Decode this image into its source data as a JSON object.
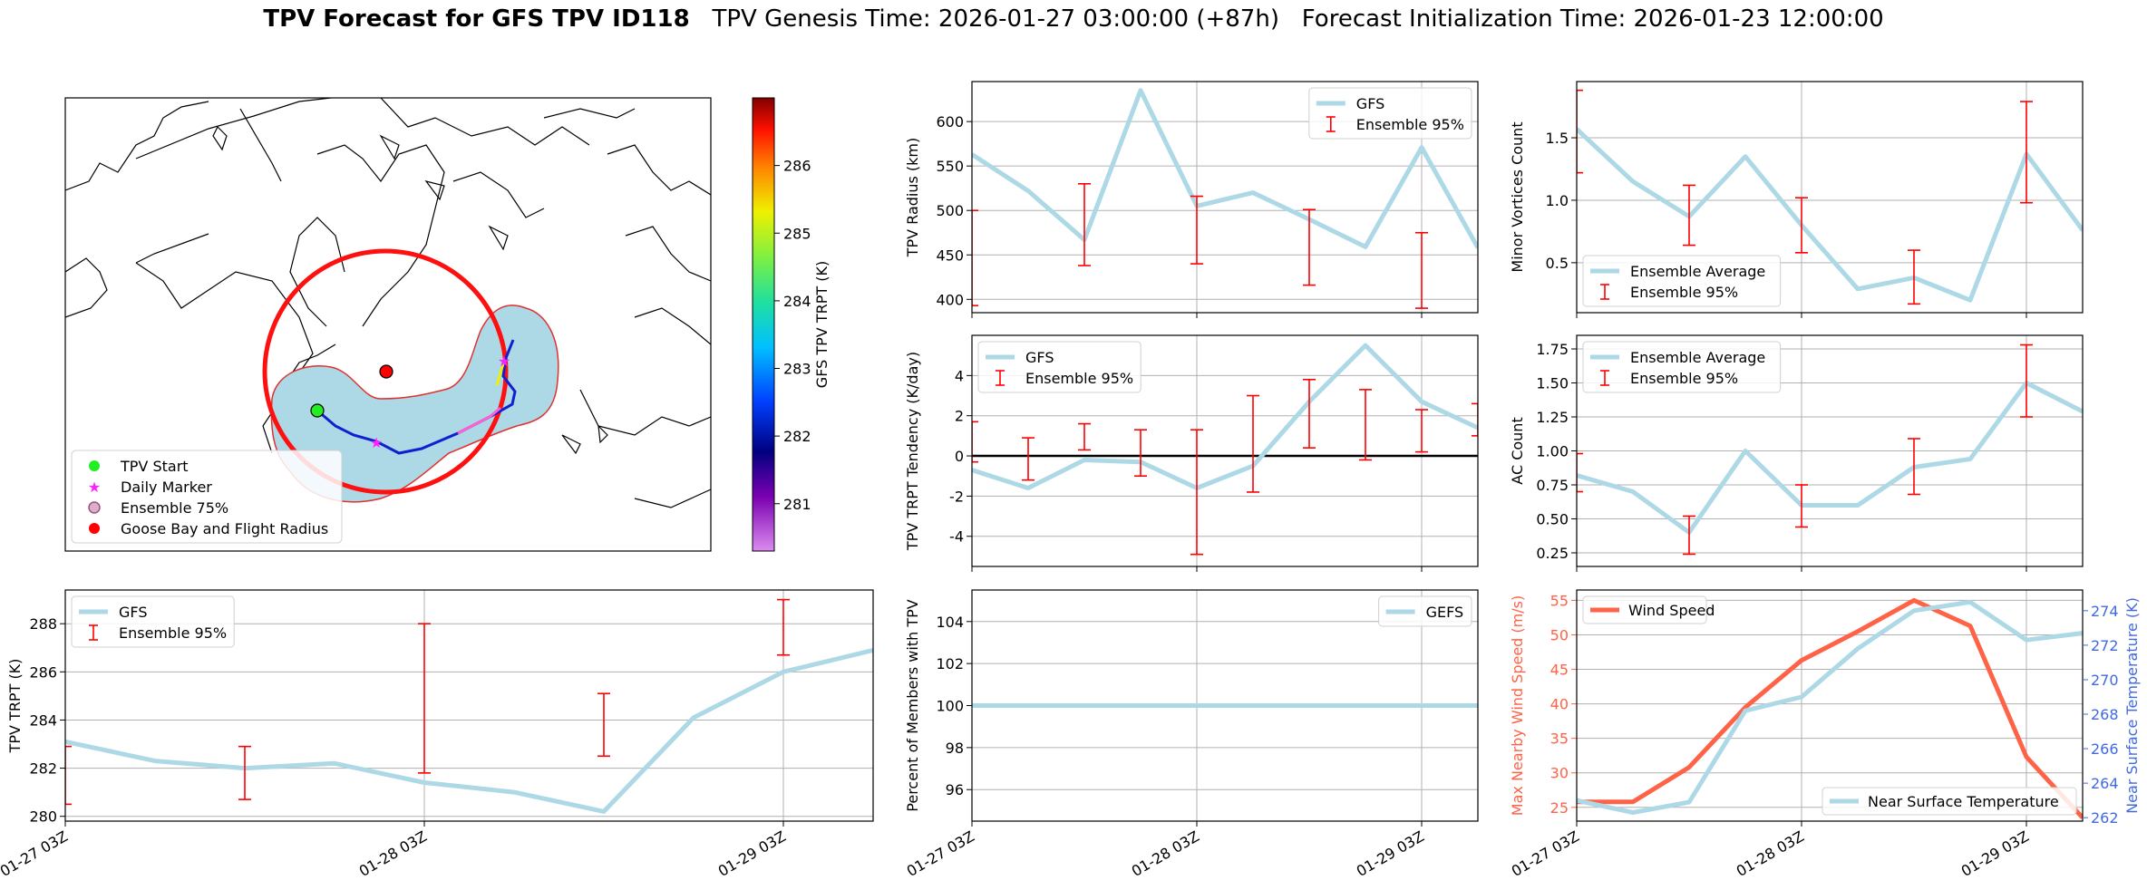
{
  "figure": {
    "title_bold": "TPV Forecast for GFS TPV ID118",
    "title_genesis": "TPV Genesis Time: 2026-01-27 03:00:00 (+87h)",
    "title_init": "Forecast Initialization Time: 2026-01-23 12:00:00"
  },
  "colors": {
    "gfs_line": "#add8e6",
    "ensemble_bar": "#ff0000",
    "wind_line": "#ff6347",
    "temp_axis": "#4169e1",
    "grid": "#b0b0b0",
    "map_fill": "#add8e6",
    "flight_radius": "#ff0000"
  },
  "map": {
    "legend": [
      "TPV Start",
      "Daily Marker",
      "Ensemble 75%",
      "Goose Bay and Flight Radius"
    ],
    "colorbar": {
      "label": "GFS TPV TRPT (K)",
      "ticks": [
        281,
        282,
        283,
        284,
        285,
        286
      ],
      "range": [
        280.3,
        287.0
      ]
    }
  },
  "chart_data": [
    {
      "id": "trpt",
      "type": "line",
      "ylabel": "TPV TRPT (K)",
      "x_ticks": [
        "01-27 03Z",
        "01-28 03Z",
        "01-29 03Z"
      ],
      "ylim": [
        279.8,
        289.4
      ],
      "yticks": [
        280,
        282,
        284,
        286,
        288
      ],
      "series": [
        {
          "name": "GFS",
          "x": [
            0,
            6,
            12,
            18,
            24,
            30,
            36,
            42,
            48,
            54
          ],
          "values": [
            283.1,
            282.3,
            282.0,
            282.2,
            281.4,
            281.0,
            280.2,
            284.1,
            286.0,
            286.9
          ]
        }
      ],
      "errorbars": {
        "name": "Ensemble 95%",
        "x": [
          0,
          12,
          24,
          36,
          48
        ],
        "low": [
          280.5,
          280.7,
          281.8,
          282.5,
          286.7
        ],
        "high": [
          282.9,
          282.9,
          288.0,
          285.1,
          289.0
        ]
      },
      "legend": [
        "GFS",
        "Ensemble 95%"
      ]
    },
    {
      "id": "radius",
      "type": "line",
      "ylabel": "TPV Radius (km)",
      "ylim": [
        385,
        645
      ],
      "yticks": [
        400,
        450,
        500,
        550,
        600
      ],
      "series": [
        {
          "name": "GFS",
          "x": [
            0,
            6,
            12,
            18,
            24,
            30,
            36,
            42,
            48,
            54
          ],
          "values": [
            563,
            522,
            467,
            635,
            505,
            520,
            490,
            459,
            571,
            458
          ]
        }
      ],
      "errorbars": {
        "name": "Ensemble 95%",
        "x": [
          0,
          12,
          24,
          36,
          48
        ],
        "low": [
          393,
          438,
          440,
          416,
          390
        ],
        "high": [
          500,
          530,
          516,
          501,
          475
        ]
      },
      "legend": [
        "GFS",
        "Ensemble 95%"
      ]
    },
    {
      "id": "minor",
      "type": "line",
      "ylabel": "Minor Vortices Count",
      "ylim": [
        0.1,
        1.95
      ],
      "yticks": [
        0.5,
        1.0,
        1.5
      ],
      "series": [
        {
          "name": "Ensemble Average",
          "x": [
            0,
            6,
            12,
            18,
            24,
            30,
            36,
            42,
            48,
            54
          ],
          "values": [
            1.57,
            1.15,
            0.87,
            1.35,
            0.8,
            0.29,
            0.38,
            0.2,
            1.37,
            0.76
          ]
        }
      ],
      "errorbars": {
        "name": "Ensemble 95%",
        "x": [
          0,
          12,
          24,
          36,
          48
        ],
        "low": [
          1.22,
          0.64,
          0.58,
          0.17,
          0.98
        ],
        "high": [
          1.88,
          1.12,
          1.02,
          0.6,
          1.79
        ]
      },
      "legend": [
        "Ensemble Average",
        "Ensemble 95%"
      ]
    },
    {
      "id": "tendency",
      "type": "line",
      "ylabel": "TPV TRPT Tendency (K/day)",
      "ylim": [
        -5.5,
        6.0
      ],
      "yticks": [
        -4,
        -2,
        0,
        2,
        4
      ],
      "zero_line": true,
      "series": [
        {
          "name": "GFS",
          "x": [
            0,
            6,
            12,
            18,
            24,
            30,
            36,
            42,
            48,
            54
          ],
          "values": [
            -0.7,
            -1.6,
            -0.2,
            -0.3,
            -1.6,
            -0.5,
            2.7,
            5.5,
            2.7,
            1.4
          ]
        }
      ],
      "errorbars": {
        "name": "Ensemble 95%",
        "x": [
          0,
          6,
          12,
          18,
          24,
          30,
          36,
          42,
          48,
          54
        ],
        "low": [
          -0.3,
          -1.2,
          0.3,
          -1.0,
          -4.9,
          -1.8,
          0.4,
          -0.2,
          0.2,
          1.0
        ],
        "high": [
          1.7,
          0.9,
          1.6,
          1.3,
          1.3,
          3.0,
          3.8,
          3.3,
          2.3,
          2.6
        ]
      },
      "legend": [
        "GFS",
        "Ensemble 95%"
      ]
    },
    {
      "id": "ac",
      "type": "line",
      "ylabel": "AC Count",
      "ylim": [
        0.15,
        1.85
      ],
      "yticks": [
        0.25,
        0.5,
        0.75,
        1.0,
        1.25,
        1.5,
        1.75
      ],
      "series": [
        {
          "name": "Ensemble Average",
          "x": [
            0,
            6,
            12,
            18,
            24,
            30,
            36,
            42,
            48,
            54
          ],
          "values": [
            0.82,
            0.7,
            0.4,
            1.0,
            0.6,
            0.6,
            0.88,
            0.94,
            1.5,
            1.29
          ]
        }
      ],
      "errorbars": {
        "name": "Ensemble 95%",
        "x": [
          0,
          12,
          24,
          36,
          48
        ],
        "low": [
          0.7,
          0.24,
          0.44,
          0.68,
          1.25
        ],
        "high": [
          0.98,
          0.52,
          0.75,
          1.09,
          1.78
        ]
      },
      "legend": [
        "Ensemble Average",
        "Ensemble 95%"
      ]
    },
    {
      "id": "members",
      "type": "line",
      "ylabel": "Percent of Members with TPV",
      "x_ticks": [
        "01-27 03Z",
        "01-28 03Z",
        "01-29 03Z"
      ],
      "ylim": [
        94.5,
        105.5
      ],
      "yticks": [
        96,
        98,
        100,
        102,
        104
      ],
      "series": [
        {
          "name": "GEFS",
          "x": [
            0,
            54
          ],
          "values": [
            100,
            100
          ]
        }
      ],
      "legend": [
        "GEFS"
      ]
    },
    {
      "id": "wind",
      "type": "line",
      "ylabel": "Max Nearby Wind Speed (m/s)",
      "ylabel_right": "Near Surface Temperature (K)",
      "x_ticks": [
        "01-27 03Z",
        "01-28 03Z",
        "01-29 03Z"
      ],
      "ylim": [
        23,
        56.5
      ],
      "yticks": [
        25,
        30,
        35,
        40,
        45,
        50,
        55
      ],
      "ylim_right": [
        261.8,
        275.2
      ],
      "yticks_right": [
        262,
        264,
        266,
        268,
        270,
        272,
        274
      ],
      "series": [
        {
          "name": "Wind Speed",
          "axis": "left",
          "x": [
            0,
            6,
            12,
            18,
            24,
            30,
            36,
            42,
            48,
            54
          ],
          "values": [
            25.8,
            25.8,
            30.8,
            39.5,
            46.3,
            50.5,
            55.0,
            51.3,
            32.3,
            23.5
          ]
        },
        {
          "name": "Near Surface Temperature",
          "axis": "right",
          "x": [
            0,
            6,
            12,
            18,
            24,
            30,
            36,
            42,
            48,
            54
          ],
          "values": [
            263.0,
            262.3,
            262.9,
            268.2,
            269.0,
            271.8,
            274.0,
            274.5,
            272.3,
            272.7
          ]
        }
      ],
      "legend": [
        "Wind Speed",
        "Near Surface Temperature"
      ]
    }
  ]
}
